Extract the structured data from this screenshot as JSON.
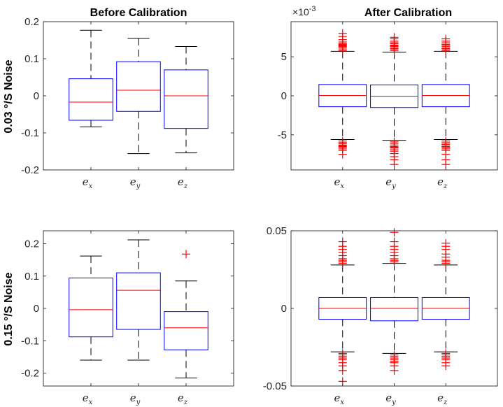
{
  "figure": {
    "row_labels": [
      "0.03 °/S Noise",
      "0.15 °/S Noise"
    ],
    "colors": {
      "box": "#0000ff",
      "median": "#ff0000",
      "whisker": "#000000",
      "outlier": "#ff0000",
      "axes": "#262626"
    }
  },
  "chart_data": [
    {
      "type": "box",
      "title": "Before Calibration",
      "ylabel": "0.03 °/S Noise",
      "xlabel": "",
      "ylim": [
        -0.2,
        0.2
      ],
      "yticks": [
        -0.2,
        -0.1,
        0,
        0.1,
        0.2
      ],
      "ytick_labels": [
        "-0.2",
        "-0.1",
        "0",
        "0.1",
        "0.2"
      ],
      "y_multiplier": "",
      "categories": [
        {
          "base": "e",
          "sub": "x"
        },
        {
          "base": "e",
          "sub": "y"
        },
        {
          "base": "e",
          "sub": "z"
        }
      ],
      "boxes": [
        {
          "whisker_low": -0.084,
          "q1": -0.066,
          "median": -0.017,
          "q3": 0.046,
          "whisker_high": 0.177,
          "outliers": []
        },
        {
          "whisker_low": -0.156,
          "q1": -0.042,
          "median": 0.015,
          "q3": 0.092,
          "whisker_high": 0.155,
          "outliers": []
        },
        {
          "whisker_low": -0.154,
          "q1": -0.088,
          "median": 0.0,
          "q3": 0.07,
          "whisker_high": 0.133,
          "outliers": []
        }
      ]
    },
    {
      "type": "box",
      "title": "After Calibration",
      "ylabel": "",
      "xlabel": "",
      "ylim": [
        -9.5,
        9.5
      ],
      "yticks": [
        -5,
        0,
        5
      ],
      "ytick_labels": [
        "-5",
        "0",
        "5"
      ],
      "y_multiplier": "×10",
      "y_multiplier_exp": "-3",
      "categories": [
        {
          "base": "e",
          "sub": "x"
        },
        {
          "base": "e",
          "sub": "y"
        },
        {
          "base": "e",
          "sub": "z"
        }
      ],
      "boxes": [
        {
          "whisker_low": -5.6,
          "q1": -1.4,
          "median": 0.05,
          "q3": 1.45,
          "whisker_high": 5.7,
          "outliers": [
            5.8,
            6.0,
            6.2,
            6.3,
            6.4,
            6.5,
            6.6,
            6.7,
            6.9,
            7.2,
            7.6,
            8.0,
            -5.8,
            -6.0,
            -6.1,
            -6.3,
            -6.4,
            -6.5,
            -6.6,
            -6.8,
            -7.0,
            -7.5
          ]
        },
        {
          "whisker_low": -5.7,
          "q1": -1.5,
          "median": -0.05,
          "q3": 1.4,
          "whisker_high": 5.6,
          "outliers": [
            5.8,
            6.0,
            6.1,
            6.3,
            6.4,
            6.5,
            6.7,
            6.8,
            7.0,
            7.3,
            7.5,
            -5.9,
            -6.1,
            -6.3,
            -6.5,
            -6.6,
            -6.7,
            -6.9,
            -7.1,
            -7.4,
            -7.8,
            -8.2,
            -8.8
          ]
        },
        {
          "whisker_low": -5.6,
          "q1": -1.4,
          "median": 0.05,
          "q3": 1.45,
          "whisker_high": 5.7,
          "outliers": [
            5.8,
            6.0,
            6.1,
            6.3,
            6.5,
            6.6,
            6.8,
            7.0,
            7.3,
            -5.8,
            -6.0,
            -6.2,
            -6.3,
            -6.5,
            -6.6,
            -6.8,
            -7.0,
            -7.5,
            -8.2,
            -8.8
          ]
        }
      ]
    },
    {
      "type": "box",
      "title": "",
      "ylabel": "0.15 °/S Noise",
      "xlabel": "",
      "ylim": [
        -0.24,
        0.24
      ],
      "yticks": [
        -0.2,
        -0.1,
        0,
        0.1,
        0.2
      ],
      "ytick_labels": [
        "-0.2",
        "-0.1",
        "0",
        "0.1",
        "0.2"
      ],
      "y_multiplier": "",
      "categories": [
        {
          "base": "e",
          "sub": "x"
        },
        {
          "base": "e",
          "sub": "y"
        },
        {
          "base": "e",
          "sub": "z"
        }
      ],
      "boxes": [
        {
          "whisker_low": -0.16,
          "q1": -0.088,
          "median": -0.004,
          "q3": 0.094,
          "whisker_high": 0.162,
          "outliers": []
        },
        {
          "whisker_low": -0.16,
          "q1": -0.065,
          "median": 0.056,
          "q3": 0.11,
          "whisker_high": 0.212,
          "outliers": []
        },
        {
          "whisker_low": -0.215,
          "q1": -0.128,
          "median": -0.06,
          "q3": -0.01,
          "whisker_high": 0.085,
          "outliers": [
            0.168
          ]
        }
      ]
    },
    {
      "type": "box",
      "title": "",
      "ylabel": "",
      "xlabel": "",
      "ylim": [
        -0.05,
        0.05
      ],
      "yticks": [
        -0.05,
        0,
        0.05
      ],
      "ytick_labels": [
        "-0.05",
        "0",
        "0.05"
      ],
      "y_multiplier": "",
      "categories": [
        {
          "base": "e",
          "sub": "x"
        },
        {
          "base": "e",
          "sub": "y"
        },
        {
          "base": "e",
          "sub": "z"
        }
      ],
      "boxes": [
        {
          "whisker_low": -0.028,
          "q1": -0.007,
          "median": 0.0,
          "q3": 0.007,
          "whisker_high": 0.028,
          "outliers": [
            0.029,
            0.03,
            0.031,
            0.032,
            0.034,
            0.036,
            0.038,
            0.04,
            0.043,
            -0.029,
            -0.03,
            -0.031,
            -0.032,
            -0.033,
            -0.035,
            -0.037,
            -0.04,
            -0.047
          ]
        },
        {
          "whisker_low": -0.029,
          "q1": -0.008,
          "median": 0.0,
          "q3": 0.007,
          "whisker_high": 0.029,
          "outliers": [
            0.03,
            0.031,
            0.032,
            0.034,
            0.036,
            0.038,
            0.04,
            0.043,
            0.049,
            -0.03,
            -0.031,
            -0.032,
            -0.033,
            -0.034,
            -0.035,
            -0.037,
            -0.04
          ]
        },
        {
          "whisker_low": -0.028,
          "q1": -0.007,
          "median": 0.0,
          "q3": 0.007,
          "whisker_high": 0.028,
          "outliers": [
            0.029,
            0.03,
            0.031,
            0.033,
            0.035,
            0.038,
            0.04,
            0.042,
            -0.029,
            -0.03,
            -0.031,
            -0.032,
            -0.033,
            -0.035,
            -0.037
          ]
        }
      ]
    }
  ]
}
